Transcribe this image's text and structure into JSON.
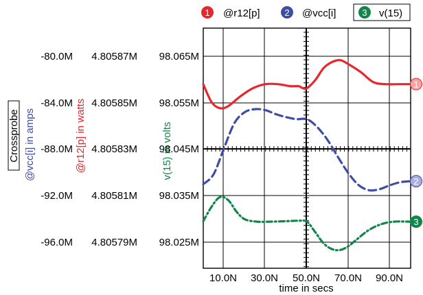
{
  "legend": [
    {
      "num": "1",
      "label": "@r12[p]",
      "color": "#e8262b"
    },
    {
      "num": "2",
      "label": "@vcc[i]",
      "color": "#3d4da3"
    },
    {
      "num": "3",
      "label": "v(15)",
      "color": "#12864a"
    }
  ],
  "y_axes": {
    "vcc_amps": {
      "title": "@vcc[i] in amps",
      "ticks": [
        "-80.0M",
        "-84.0M",
        "-88.0M",
        "-92.0M",
        "-96.0M"
      ],
      "color": "#3d4da3"
    },
    "r12_watts": {
      "title": "@r12[p] in watts",
      "ticks": [
        "4.80587M",
        "4.80585M",
        "4.80583M",
        "4.80581M",
        "4.80579M"
      ],
      "color": "#e8262b"
    },
    "v15_volts": {
      "title": "v(15) in volts",
      "ticks": [
        "98.065M",
        "98.055M",
        "98.045M",
        "98.035M",
        "98.025M"
      ],
      "color": "#12864a"
    }
  },
  "crossprobe_label": "Crossprobe",
  "x_axis": {
    "title": "time in secs",
    "ticks": [
      "10.0N",
      "30.0N",
      "50.0N",
      "70.0N",
      "90.0N"
    ]
  },
  "chart_data": {
    "type": "line",
    "xlabel": "time in secs",
    "xlim": [
      0,
      100
    ],
    "x_unit": "ns",
    "grid": true,
    "legend_position": "top",
    "series": [
      {
        "name": "@r12[p]",
        "marker": "1",
        "axis": "@r12[p] in watts",
        "style": "solid",
        "color": "#e8262b",
        "ylim": [
          4.80577,
          4.80589
        ],
        "x": [
          0,
          4,
          8,
          12,
          18,
          24,
          30,
          36,
          42,
          46,
          48,
          50,
          54,
          58,
          62,
          66,
          70,
          76,
          82,
          88,
          94,
          100
        ],
        "values": [
          4.805862,
          4.805853,
          4.80585,
          4.805851,
          4.805856,
          4.80586,
          4.805862,
          4.805862,
          4.805861,
          4.805861,
          4.80586,
          4.80586,
          4.805864,
          4.80587,
          4.805873,
          4.805874,
          4.805872,
          4.805868,
          4.805863,
          4.805862,
          4.805862,
          4.805862
        ]
      },
      {
        "name": "@vcc[i]",
        "marker": "2",
        "axis": "@vcc[i] in amps",
        "style": "dashed",
        "color": "#3d4da3",
        "ylim": [
          -0.1,
          -0.076
        ],
        "x": [
          0,
          5,
          10,
          15,
          20,
          25,
          30,
          35,
          40,
          45,
          50,
          55,
          60,
          65,
          70,
          75,
          80,
          85,
          90,
          95,
          100
        ],
        "values": [
          -0.0916,
          -0.0906,
          -0.088,
          -0.0855,
          -0.0844,
          -0.0841,
          -0.0842,
          -0.0846,
          -0.0849,
          -0.0851,
          -0.0851,
          -0.0859,
          -0.0872,
          -0.0889,
          -0.0905,
          -0.0917,
          -0.0922,
          -0.0921,
          -0.0917,
          -0.0914,
          -0.0913
        ]
      },
      {
        "name": "v(15)",
        "marker": "3",
        "axis": "v(15) in volts",
        "style": "dash-dot",
        "color": "#12864a",
        "ylim": [
          0.09802,
          0.09807
        ],
        "x": [
          0,
          4,
          8,
          12,
          16,
          20,
          26,
          32,
          40,
          46,
          50,
          54,
          58,
          62,
          66,
          70,
          74,
          80,
          86,
          92,
          100
        ],
        "values": [
          0.0980298,
          0.0980328,
          0.0980348,
          0.0980342,
          0.0980318,
          0.0980302,
          0.0980297,
          0.0980297,
          0.0980298,
          0.0980299,
          0.0980297,
          0.0980275,
          0.0980252,
          0.098024,
          0.0980238,
          0.0980246,
          0.098026,
          0.098028,
          0.0980292,
          0.0980297,
          0.0980297
        ]
      }
    ]
  }
}
